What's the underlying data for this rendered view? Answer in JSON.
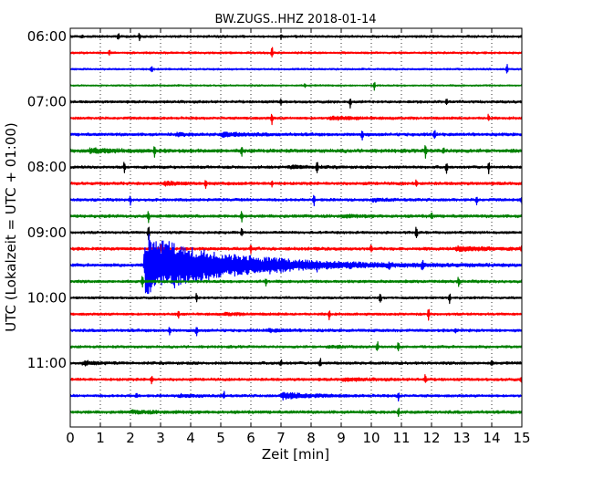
{
  "chart_data": {
    "type": "line",
    "title": "BW.ZUGS..HHZ 2018-01-14",
    "xlabel": "Zeit  [min]",
    "ylabel": "UTC (Lokalzeit = UTC + 01:00)",
    "xlim": [
      0,
      15
    ],
    "x_ticks": [
      "0",
      "1",
      "2",
      "3",
      "4",
      "5",
      "6",
      "7",
      "8",
      "9",
      "10",
      "11",
      "12",
      "13",
      "14",
      "15"
    ],
    "y_ticks": [
      {
        "label": "06:00",
        "row": 0
      },
      {
        "label": "07:00",
        "row": 4
      },
      {
        "label": "08:00",
        "row": 8
      },
      {
        "label": "09:00",
        "row": 12
      },
      {
        "label": "10:00",
        "row": 16
      },
      {
        "label": "11:00",
        "row": 20
      }
    ],
    "row_interval_min": 15,
    "row_count": 24,
    "trace_colors": [
      "#000000",
      "#ff0000",
      "#0000ff",
      "#008000"
    ],
    "grid": "vertical dotted at each minute",
    "series": [
      {
        "start": "06:00",
        "noise": 1.0,
        "spikes": [
          [
            0.4,
            0.5
          ],
          [
            1.6,
            1.4
          ],
          [
            2.3,
            1.2
          ],
          [
            7.0,
            0.6
          ]
        ],
        "events": []
      },
      {
        "start": "06:15",
        "noise": 0.9,
        "spikes": [
          [
            1.3,
            0.6
          ],
          [
            6.7,
            1.8
          ]
        ],
        "events": []
      },
      {
        "start": "06:30",
        "noise": 0.8,
        "spikes": [
          [
            2.7,
            1.3
          ],
          [
            14.5,
            1.6
          ]
        ],
        "events": []
      },
      {
        "start": "06:45",
        "noise": 0.7,
        "spikes": [
          [
            7.8,
            0.6
          ],
          [
            10.1,
            1.6
          ]
        ],
        "events": []
      },
      {
        "start": "07:00",
        "noise": 1.1,
        "spikes": [
          [
            7.0,
            0.7
          ],
          [
            9.3,
            1.6
          ],
          [
            12.5,
            0.9
          ]
        ],
        "events": []
      },
      {
        "start": "07:15",
        "noise": 1.1,
        "spikes": [
          [
            6.7,
            1.6
          ],
          [
            13.9,
            1.2
          ]
        ],
        "events": [
          [
            8.6,
            0.8,
            3.0
          ]
        ]
      },
      {
        "start": "07:30",
        "noise": 1.3,
        "spikes": [
          [
            9.7,
            1.4
          ],
          [
            12.1,
            1.6
          ]
        ],
        "events": [
          [
            5.0,
            0.9,
            3.0
          ],
          [
            3.5,
            0.5,
            1.5
          ]
        ]
      },
      {
        "start": "07:45",
        "noise": 1.5,
        "spikes": [
          [
            2.8,
            1.8
          ],
          [
            5.7,
            1.4
          ],
          [
            11.8,
            1.8
          ],
          [
            12.4,
            1.0
          ]
        ],
        "events": [
          [
            0.6,
            0.8,
            3.5
          ]
        ]
      },
      {
        "start": "08:00",
        "noise": 1.2,
        "spikes": [
          [
            1.8,
            1.6
          ],
          [
            8.2,
            1.8
          ],
          [
            12.5,
            1.5
          ],
          [
            13.9,
            1.8
          ]
        ],
        "events": [
          [
            7.3,
            0.6,
            2.5
          ]
        ]
      },
      {
        "start": "08:15",
        "noise": 1.3,
        "spikes": [
          [
            4.5,
            1.8
          ],
          [
            6.7,
            1.3
          ],
          [
            11.5,
            1.2
          ]
        ],
        "events": [
          [
            3.1,
            0.6,
            2.0
          ]
        ]
      },
      {
        "start": "08:30",
        "noise": 1.2,
        "spikes": [
          [
            2.0,
            1.2
          ],
          [
            8.1,
            1.5
          ],
          [
            13.5,
            1.5
          ],
          [
            15.0,
            1.5
          ]
        ],
        "events": [
          [
            10.0,
            0.5,
            2.0
          ]
        ]
      },
      {
        "start": "08:45",
        "noise": 1.3,
        "spikes": [
          [
            2.6,
            1.5
          ],
          [
            5.7,
            1.9
          ],
          [
            12.0,
            1.1
          ]
        ],
        "events": [
          [
            9.0,
            0.5,
            2.0
          ]
        ]
      },
      {
        "start": "09:00",
        "noise": 1.1,
        "spikes": [
          [
            2.6,
            2.0
          ],
          [
            5.7,
            1.3
          ],
          [
            11.5,
            1.8
          ]
        ],
        "events": []
      },
      {
        "start": "09:15",
        "noise": 1.3,
        "spikes": [
          [
            3.0,
            1.2
          ],
          [
            6.0,
            1.1
          ],
          [
            10.0,
            1.1
          ],
          [
            15.0,
            1.4
          ]
        ],
        "events": [
          [
            12.8,
            1.0,
            4.0
          ]
        ]
      },
      {
        "start": "09:30",
        "noise": 1.3,
        "spikes": [
          [
            11.7,
            1.4
          ],
          [
            8.2,
            0.8
          ],
          [
            10.6,
            0.8
          ]
        ],
        "events": [
          [
            2.45,
            17.0,
            10.0
          ],
          [
            6.5,
            0.9,
            2.5
          ]
        ]
      },
      {
        "start": "09:45",
        "noise": 1.2,
        "spikes": [
          [
            2.4,
            1.5
          ],
          [
            6.5,
            1.2
          ],
          [
            12.9,
            1.2
          ]
        ],
        "events": []
      },
      {
        "start": "10:00",
        "noise": 1.0,
        "spikes": [
          [
            4.2,
            1.4
          ],
          [
            10.3,
            1.7
          ],
          [
            12.6,
            1.3
          ]
        ],
        "events": []
      },
      {
        "start": "10:15",
        "noise": 1.1,
        "spikes": [
          [
            3.6,
            1.2
          ],
          [
            8.6,
            1.4
          ],
          [
            11.9,
            1.7
          ]
        ],
        "events": [
          [
            5.1,
            0.5,
            2.0
          ]
        ]
      },
      {
        "start": "10:30",
        "noise": 1.2,
        "spikes": [
          [
            3.3,
            1.3
          ],
          [
            4.2,
            1.3
          ],
          [
            12.8,
            1.3
          ]
        ],
        "events": [
          [
            6.5,
            0.5,
            2.5
          ]
        ]
      },
      {
        "start": "10:45",
        "noise": 1.1,
        "spikes": [
          [
            10.2,
            2.0
          ],
          [
            10.9,
            1.4
          ]
        ],
        "events": [
          [
            8.5,
            0.4,
            2.0
          ]
        ]
      },
      {
        "start": "11:00",
        "noise": 1.2,
        "spikes": [
          [
            7.0,
            1.3
          ],
          [
            8.3,
            1.5
          ],
          [
            14.0,
            0.9
          ]
        ],
        "events": [
          [
            0.4,
            0.8,
            1.5
          ]
        ]
      },
      {
        "start": "11:15",
        "noise": 1.2,
        "spikes": [
          [
            2.7,
            1.4
          ],
          [
            11.8,
            1.8
          ],
          [
            15.0,
            1.2
          ]
        ],
        "events": [
          [
            9.0,
            0.5,
            3.0
          ]
        ]
      },
      {
        "start": "11:30",
        "noise": 1.1,
        "spikes": [
          [
            2.2,
            0.8
          ],
          [
            5.1,
            1.3
          ],
          [
            10.9,
            1.5
          ]
        ],
        "events": [
          [
            7.0,
            1.5,
            3.5
          ],
          [
            3.6,
            0.6,
            2.0
          ]
        ]
      },
      {
        "start": "11:45",
        "noise": 1.3,
        "spikes": [
          [
            10.9,
            1.3
          ]
        ],
        "events": [
          [
            2.0,
            0.5,
            3.5
          ]
        ]
      }
    ]
  }
}
